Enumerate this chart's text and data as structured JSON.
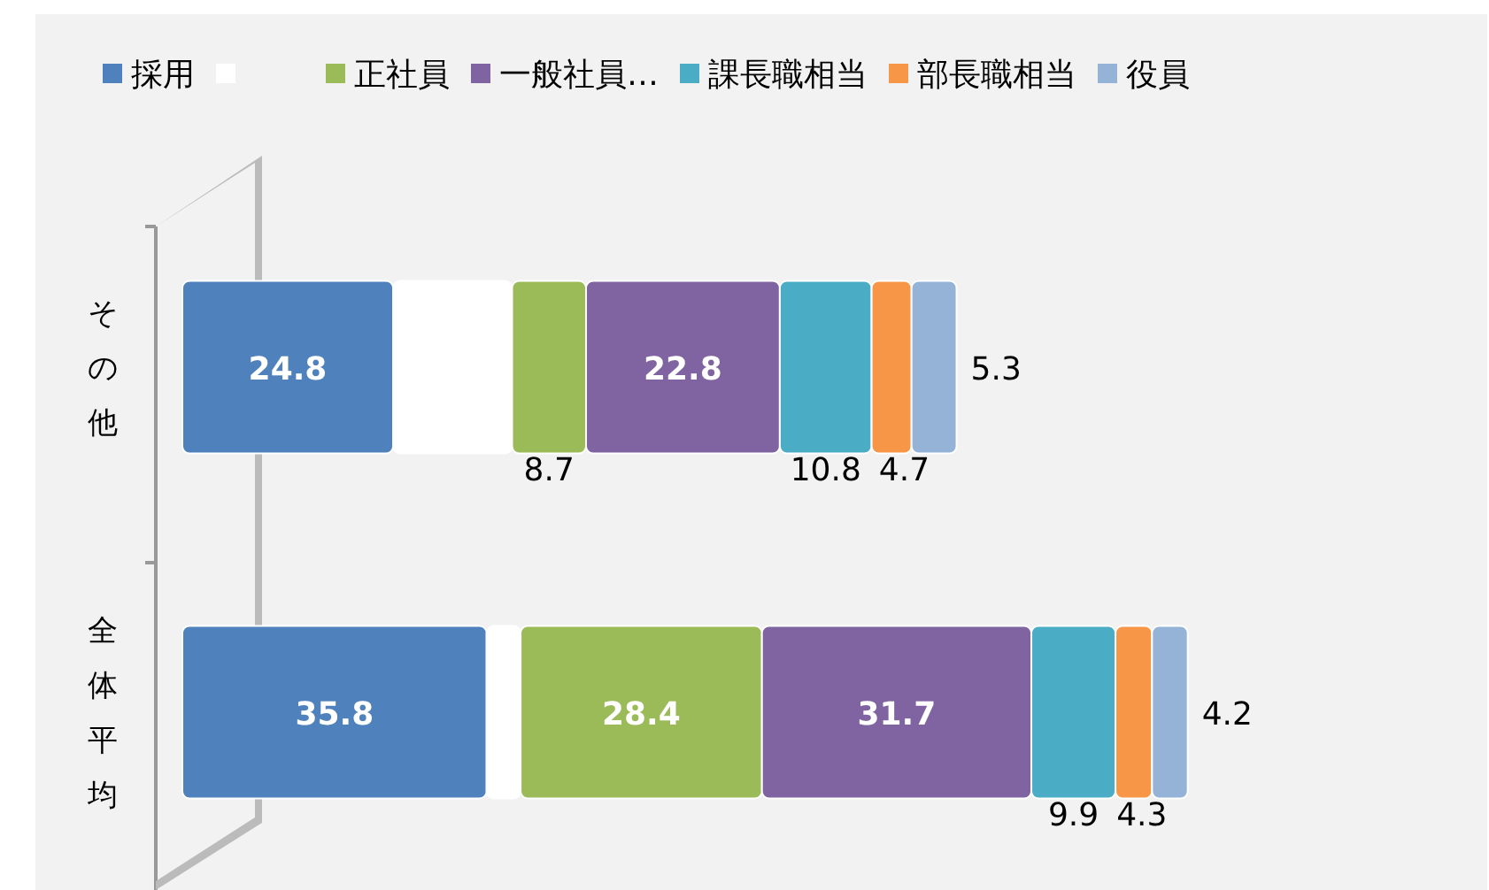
{
  "chart_data": {
    "type": "bar",
    "orientation": "horizontal",
    "stacked": true,
    "legend": "top",
    "categories": [
      "その他",
      "全体平均"
    ],
    "series": [
      {
        "name": "採用",
        "color": "#4f81bd",
        "values": [
          24.8,
          35.8
        ],
        "value_labels": [
          "24.8",
          "35.8"
        ]
      },
      {
        "color": "#ffffff",
        "values": [
          14,
          4
        ],
        "value_labels": [
          null,
          null
        ]
      },
      {
        "name": "正社員",
        "color": "#9bbb59",
        "values": [
          8.7,
          28.4
        ],
        "value_labels": [
          "8.7",
          "28.4"
        ]
      },
      {
        "name": "一般社員…",
        "color": "#8064a2",
        "values": [
          22.8,
          31.7
        ],
        "value_labels": [
          "22.8",
          "31.7"
        ]
      },
      {
        "name": "課長職相当",
        "color": "#4bacc6",
        "values": [
          10.8,
          9.9
        ],
        "value_labels": [
          "10.8",
          "9.9"
        ]
      },
      {
        "name": "部長職相当",
        "color": "#f79646",
        "values": [
          4.7,
          4.3
        ],
        "value_labels": [
          "4.7",
          "4.3"
        ]
      },
      {
        "name": "役員",
        "color": "#95b3d7",
        "values": [
          5.3,
          4.2
        ],
        "value_labels": [
          "5.3",
          "4.2"
        ]
      }
    ]
  }
}
